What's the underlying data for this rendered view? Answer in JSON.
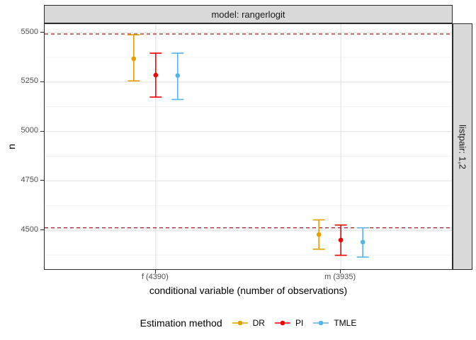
{
  "colors": {
    "strip_fill": "#D9D9D9",
    "panel_border": "#2b2b2b",
    "grid_major": "#E4E4E4",
    "grid_minor": "#F0F0F0",
    "tick_label": "#4d4d4d",
    "reference_line": "#9B2222"
  },
  "legend": {
    "title": "Estimation method",
    "items": [
      {
        "label": "DR",
        "color": "#E69F00"
      },
      {
        "label": "PI",
        "color": "#F50000"
      },
      {
        "label": "TMLE",
        "color": "#56B4E9"
      }
    ]
  },
  "chart_data": {
    "type": "scatter",
    "subtype": "point-with-errorbar",
    "facet": {
      "column_label": "model: rangerlogit",
      "row_label": "listpair: 1,2"
    },
    "xlabel": "conditional variable (number of observations)",
    "ylabel": "n",
    "categories": [
      "f (4390)",
      "m (3935)"
    ],
    "series": [
      {
        "name": "DR",
        "color": "#E69F00",
        "points": [
          {
            "x": "f (4390)",
            "y": 5368,
            "ymin": 5256,
            "ymax": 5489
          },
          {
            "x": "m (3935)",
            "y": 4479,
            "ymin": 4405,
            "ymax": 4553
          }
        ]
      },
      {
        "name": "PI",
        "color": "#F50000",
        "points": [
          {
            "x": "f (4390)",
            "y": 5285,
            "ymin": 5174,
            "ymax": 5396
          },
          {
            "x": "m (3935)",
            "y": 4451,
            "ymin": 4374,
            "ymax": 4527
          }
        ]
      },
      {
        "name": "TMLE",
        "color": "#56B4E9",
        "points": [
          {
            "x": "f (4390)",
            "y": 5283,
            "ymin": 5162,
            "ymax": 5396
          },
          {
            "x": "m (3935)",
            "y": 4441,
            "ymin": 4365,
            "ymax": 4513
          }
        ]
      }
    ],
    "reference_lines": [
      {
        "y": 5493,
        "style": "dashed",
        "color": "#9B2222"
      },
      {
        "y": 4513,
        "style": "dashed",
        "color": "#9B2222"
      }
    ],
    "y_ticks": [
      4500,
      4750,
      5000,
      5250,
      5500
    ],
    "ylim": [
      4304,
      5543
    ],
    "grid": true,
    "legend_position": "bottom"
  }
}
